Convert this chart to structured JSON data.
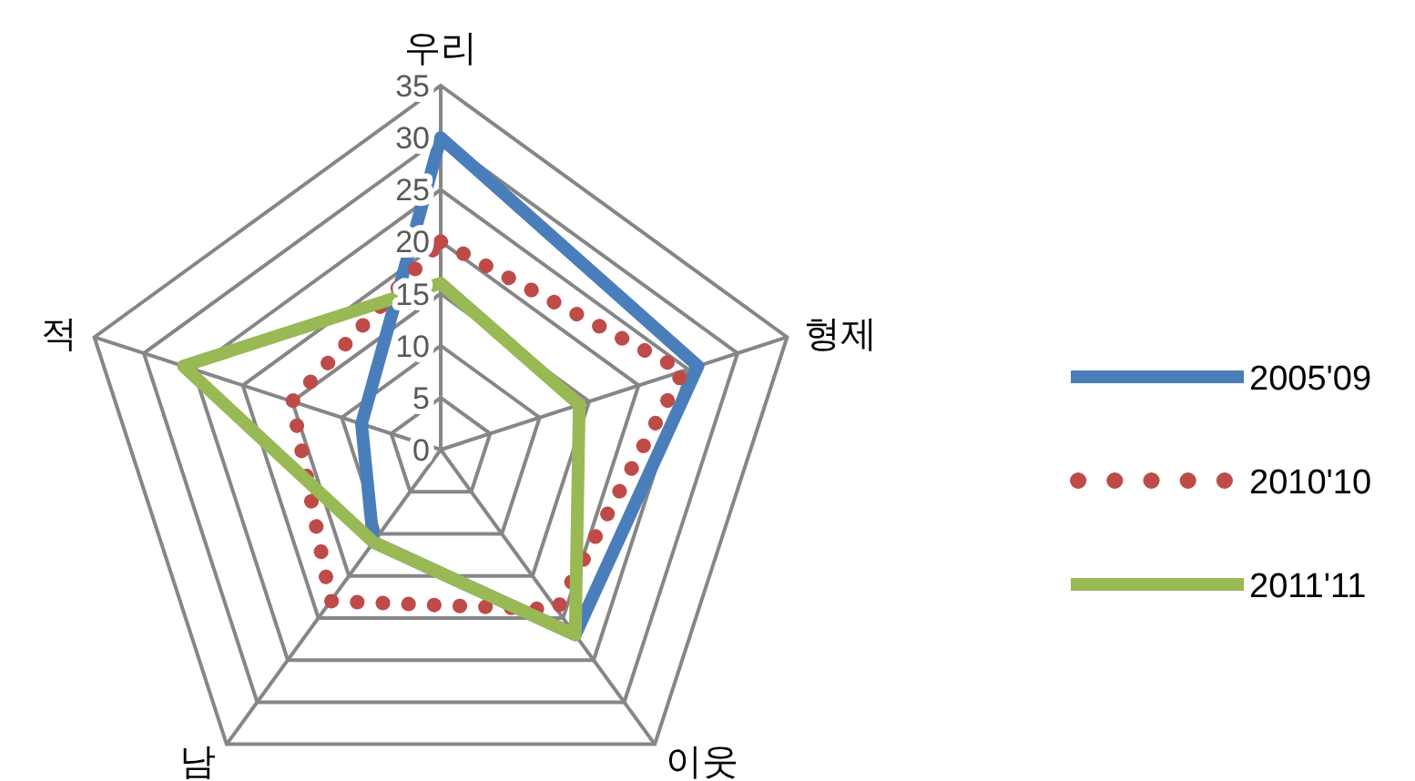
{
  "chart_data": {
    "type": "radar",
    "categories": [
      "우리",
      "형제",
      "이웃",
      "남",
      "적"
    ],
    "series": [
      {
        "name": "2005'09",
        "color": "#4a7ebb",
        "line_style": "solid",
        "values": [
          30,
          26,
          22,
          11,
          8
        ]
      },
      {
        "name": "2010'10",
        "color": "#be4b48",
        "line_style": "dotted",
        "values": [
          20,
          24.5,
          19,
          18,
          15
        ]
      },
      {
        "name": "2011'11",
        "color": "#98b954",
        "line_style": "solid",
        "values": [
          16,
          14,
          22,
          11,
          26
        ]
      }
    ],
    "ylim": [
      0,
      35
    ],
    "yticks": [
      0,
      5,
      10,
      15,
      20,
      25,
      30,
      35
    ],
    "grid": true,
    "legend": "right"
  }
}
